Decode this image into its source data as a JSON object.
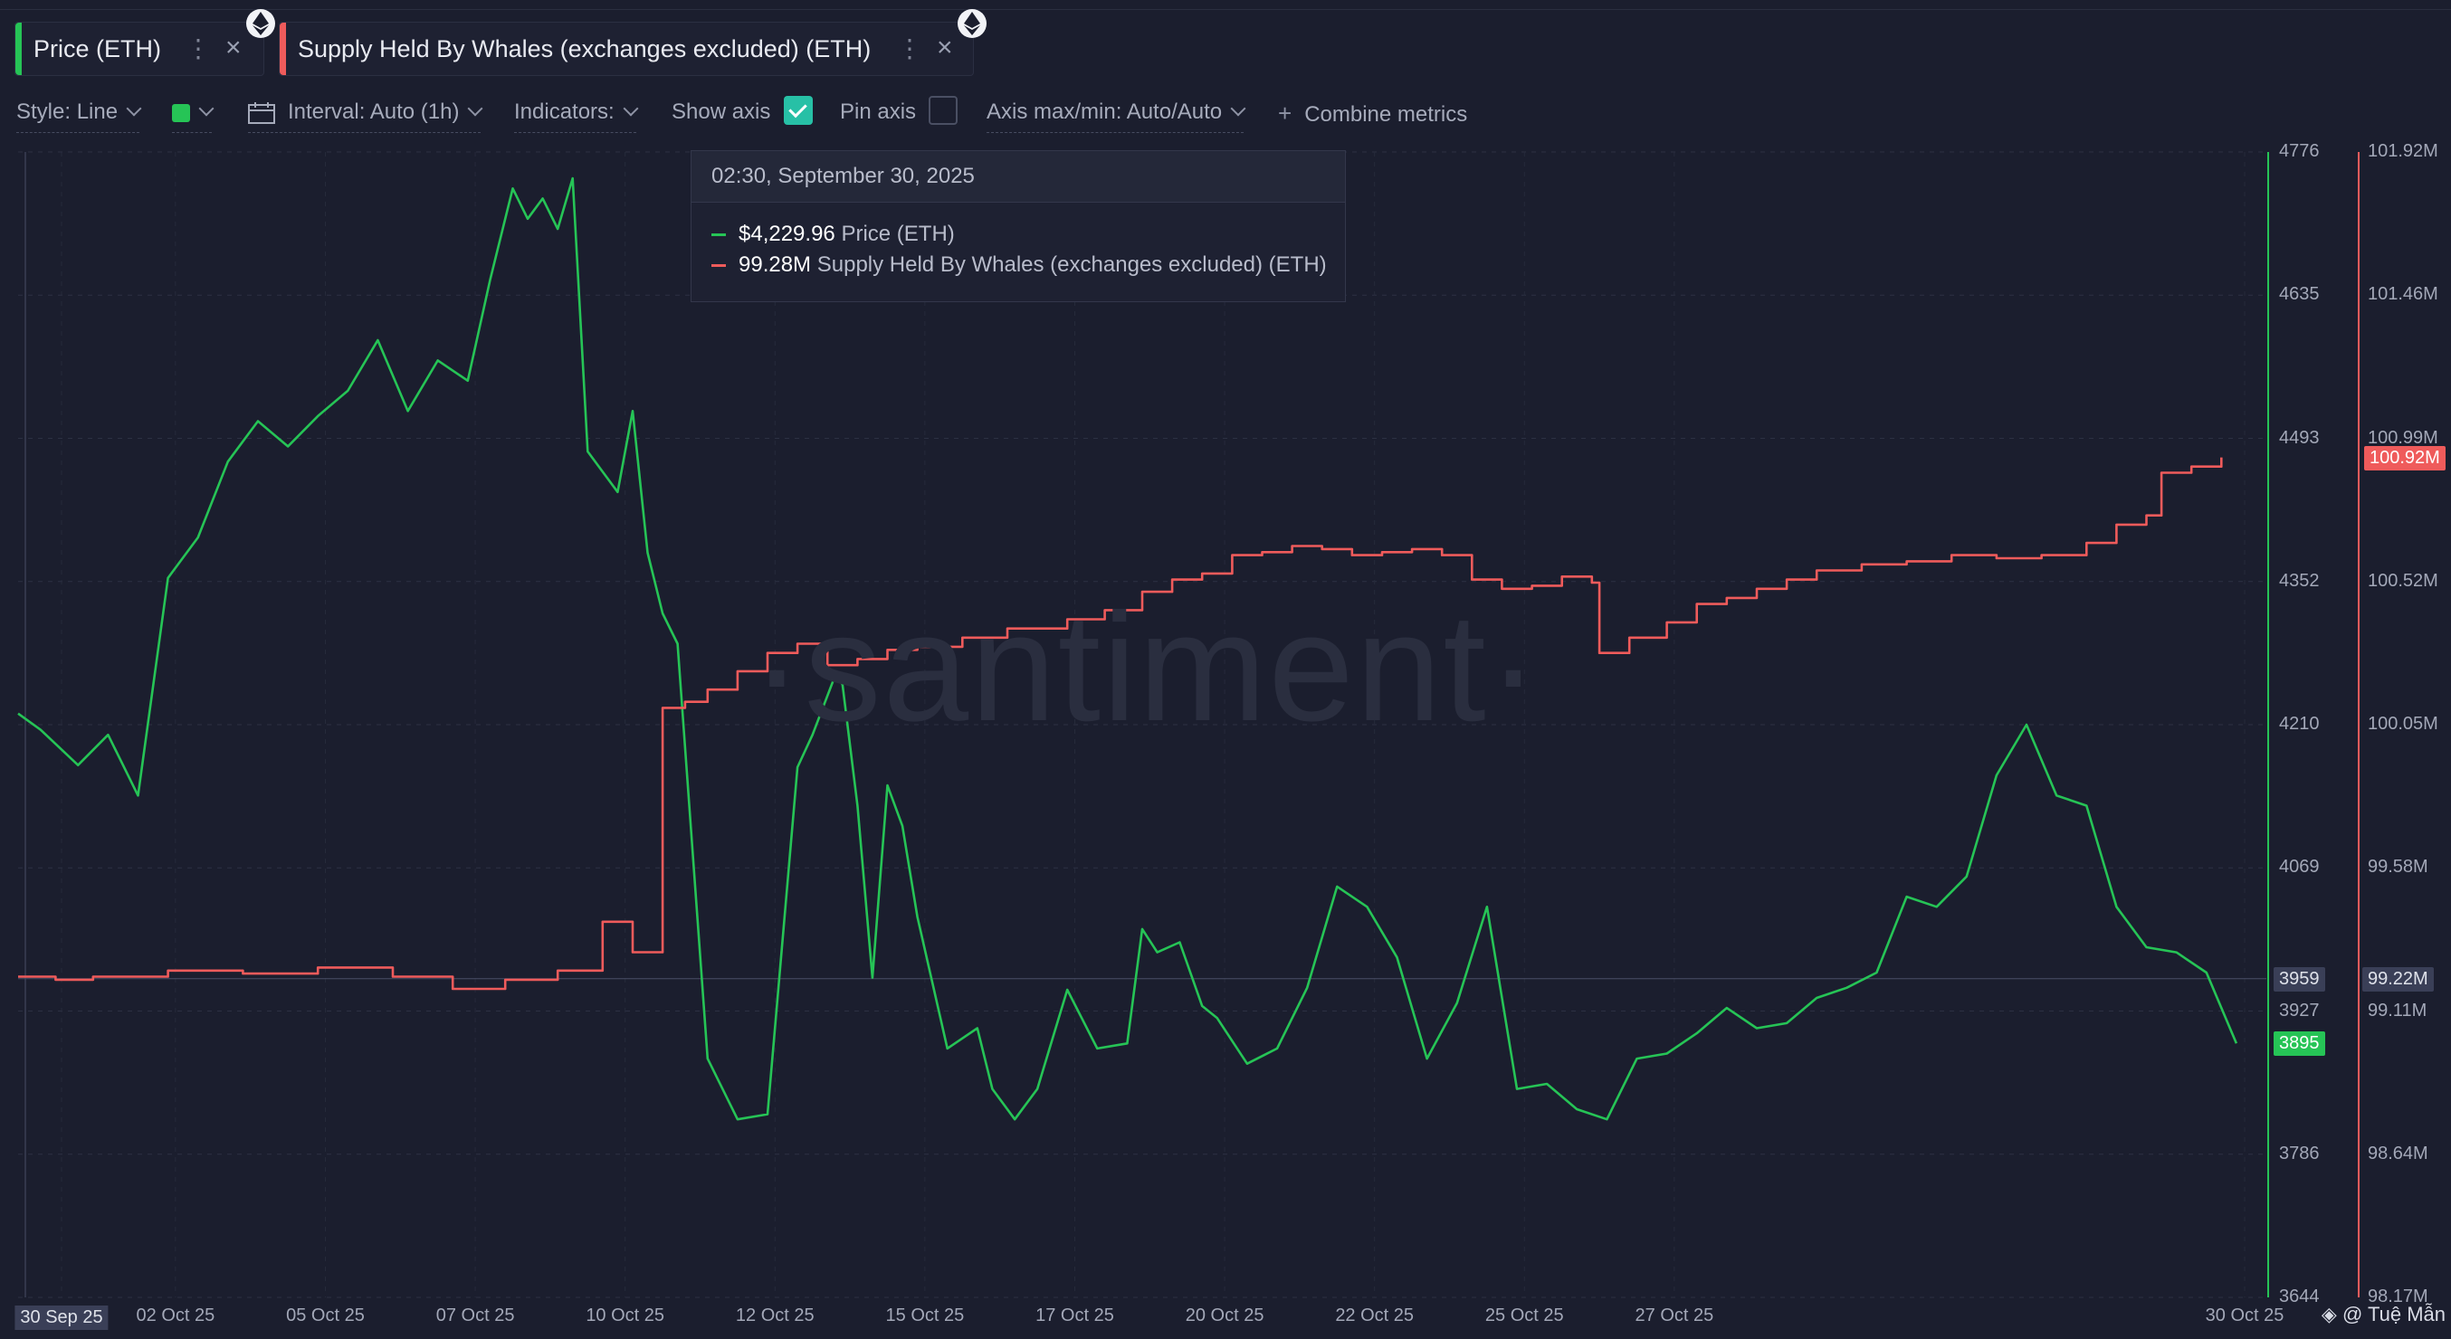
{
  "tabs": [
    {
      "label": "Price (ETH)",
      "color": "#26c456"
    },
    {
      "label": "Supply Held By Whales (exchanges excluded) (ETH)",
      "color": "#ef5b5b"
    }
  ],
  "toolbar": {
    "style": "Style: Line",
    "interval": "Interval: Auto (1h)",
    "indicators": "Indicators:",
    "show_axis": "Show axis",
    "show_axis_checked": true,
    "pin_axis": "Pin axis",
    "pin_axis_checked": false,
    "axis_maxmin": "Axis max/min: Auto/Auto",
    "combine": "Combine metrics"
  },
  "tooltip": {
    "date": "02:30, September 30, 2025",
    "rows": [
      {
        "value": "$4,229.96",
        "name": "Price (ETH)",
        "color": "#26c456"
      },
      {
        "value": "99.28M",
        "name": "Supply Held By Whales (exchanges excluded) (ETH)",
        "color": "#ef5b5b"
      }
    ]
  },
  "watermark": "·santiment·",
  "credit": "@ Tuệ Mẫn",
  "chart_data": {
    "type": "line",
    "x_labels": [
      "30 Sep 25",
      "02 Oct 25",
      "05 Oct 25",
      "07 Oct 25",
      "10 Oct 25",
      "12 Oct 25",
      "15 Oct 25",
      "17 Oct 25",
      "20 Oct 25",
      "22 Oct 25",
      "25 Oct 25",
      "27 Oct 25",
      "30 Oct 25"
    ],
    "price_axis": {
      "ticks": [
        "4776",
        "4635",
        "4493",
        "4352",
        "4210",
        "4069",
        "3927",
        "3786",
        "3644"
      ],
      "min": 3644,
      "max": 4776,
      "color": "#26c456"
    },
    "whale_axis": {
      "ticks": [
        "101.92M",
        "101.46M",
        "100.99M",
        "100.52M",
        "100.05M",
        "99.58M",
        "99.11M",
        "98.64M",
        "98.17M"
      ],
      "min": 98.17,
      "max": 101.92,
      "color": "#ef5b5b"
    },
    "crosshair_price_label": "3959",
    "crosshair_whale_label": "99.22M",
    "last_price_label": "3895",
    "last_whale_label": "100.92M",
    "series": [
      {
        "name": "Price (ETH)",
        "color": "#26c456",
        "axis": "price",
        "x_days": [
          0,
          0.3,
          0.8,
          1.2,
          1.6,
          2.0,
          2.4,
          2.8,
          3.2,
          3.6,
          4.0,
          4.4,
          4.8,
          5.2,
          5.6,
          6.0,
          6.3,
          6.6,
          6.8,
          7.0,
          7.2,
          7.4,
          7.6,
          7.8,
          8.0,
          8.2,
          8.4,
          8.6,
          8.8,
          9.2,
          9.6,
          10.0,
          10.4,
          10.6,
          10.9,
          11.0,
          11.2,
          11.4,
          11.6,
          11.8,
          12.0,
          12.4,
          12.8,
          13.0,
          13.3,
          13.6,
          14.0,
          14.4,
          14.8,
          15.0,
          15.2,
          15.5,
          15.8,
          16.0,
          16.4,
          16.8,
          17.2,
          17.6,
          18.0,
          18.4,
          18.8,
          19.2,
          19.6,
          20.0,
          20.4,
          20.8,
          21.2,
          21.6,
          22.0,
          22.4,
          22.8,
          23.2,
          23.6,
          24.0,
          24.4,
          24.8,
          25.2,
          25.6,
          26.0,
          26.4,
          26.8,
          27.2,
          27.6,
          28.0,
          28.4,
          28.8,
          29.2,
          29.6
        ],
        "values": [
          4221,
          4205,
          4170,
          4200,
          4140,
          4355,
          4395,
          4470,
          4510,
          4485,
          4515,
          4540,
          4590,
          4520,
          4570,
          4550,
          4650,
          4740,
          4710,
          4730,
          4700,
          4750,
          4480,
          4460,
          4440,
          4520,
          4380,
          4320,
          4290,
          3880,
          3820,
          3825,
          4168,
          4200,
          4258,
          4250,
          4130,
          3960,
          4150,
          4110,
          4020,
          3890,
          3910,
          3850,
          3820,
          3850,
          3948,
          3890,
          3895,
          4008,
          3985,
          3995,
          3932,
          3920,
          3875,
          3890,
          3950,
          4050,
          4030,
          3980,
          3880,
          3935,
          4030,
          3850,
          3855,
          3830,
          3820,
          3880,
          3885,
          3905,
          3930,
          3910,
          3915,
          3940,
          3950,
          3965,
          4040,
          4030,
          4060,
          4160,
          4210,
          4140,
          4130,
          4030,
          3990,
          3985,
          3965,
          3895
        ]
      },
      {
        "name": "Supply Held By Whales (exchanges excluded) (ETH)",
        "color": "#ef5b5b",
        "axis": "whale",
        "x_days": [
          0,
          0.5,
          1.0,
          2.0,
          3.0,
          4.0,
          5.0,
          5.8,
          6.5,
          7.2,
          7.8,
          8.2,
          8.6,
          8.9,
          9.2,
          9.6,
          10.0,
          10.4,
          10.8,
          11.2,
          11.6,
          12.0,
          12.6,
          13.2,
          14.0,
          14.5,
          15.0,
          15.4,
          15.8,
          16.2,
          16.6,
          17.0,
          17.4,
          17.8,
          18.2,
          18.6,
          19.0,
          19.4,
          19.8,
          20.2,
          20.6,
          21.0,
          21.1,
          21.5,
          22.0,
          22.4,
          22.8,
          23.2,
          23.6,
          24.0,
          24.6,
          25.2,
          25.8,
          26.4,
          27.0,
          27.6,
          28.0,
          28.4,
          28.6,
          29.0,
          29.4
        ],
        "values": [
          99.22,
          99.21,
          99.22,
          99.24,
          99.23,
          99.25,
          99.22,
          99.18,
          99.21,
          99.24,
          99.4,
          99.3,
          100.1,
          100.12,
          100.16,
          100.22,
          100.28,
          100.31,
          100.24,
          100.26,
          100.29,
          100.3,
          100.33,
          100.36,
          100.39,
          100.42,
          100.48,
          100.52,
          100.54,
          100.6,
          100.61,
          100.63,
          100.62,
          100.6,
          100.61,
          100.62,
          100.6,
          100.52,
          100.49,
          100.5,
          100.53,
          100.51,
          100.28,
          100.33,
          100.38,
          100.44,
          100.46,
          100.49,
          100.52,
          100.55,
          100.57,
          100.58,
          100.6,
          100.59,
          100.6,
          100.64,
          100.7,
          100.73,
          100.87,
          100.89,
          100.92
        ]
      }
    ],
    "grid": true,
    "legend": "top-left"
  }
}
